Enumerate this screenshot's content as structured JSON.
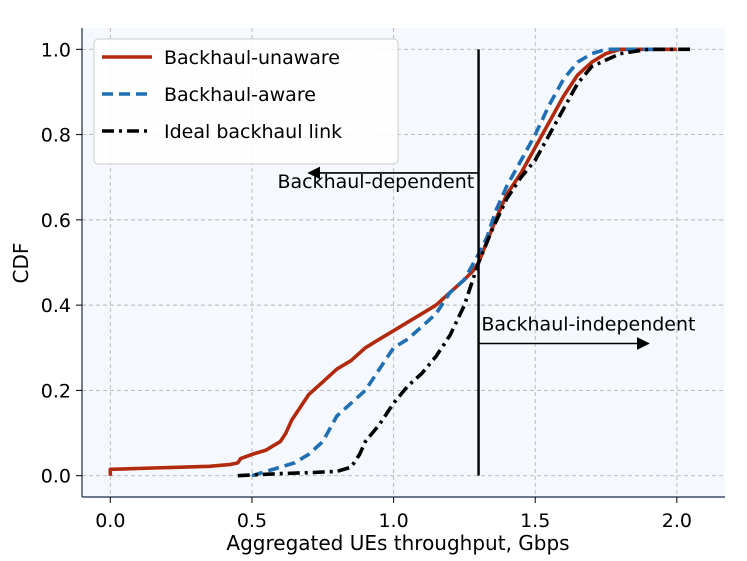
{
  "chart_data": {
    "type": "line",
    "xlabel": "Aggregated UEs throughput, Gbps",
    "ylabel": "CDF",
    "xlim": [
      -0.1,
      2.17
    ],
    "ylim": [
      -0.05,
      1.05
    ],
    "xticks": [
      0.0,
      0.5,
      1.0,
      1.5,
      2.0
    ],
    "xtick_labels": [
      "0.0",
      "0.5",
      "1.0",
      "1.5",
      "2.0"
    ],
    "yticks": [
      0.0,
      0.2,
      0.4,
      0.6,
      0.8,
      1.0
    ],
    "ytick_labels": [
      "0.0",
      "0.2",
      "0.4",
      "0.6",
      "0.8",
      "1.0"
    ],
    "grid": true,
    "legend_position": "top-left",
    "colors": {
      "background": "#f5f9fd",
      "grid": "#b5b5b5",
      "axis": "#1a2a4a"
    },
    "series": [
      {
        "name": "Backhaul-unaware",
        "color": "#b22a0e",
        "style": "solid",
        "points": [
          [
            0.0,
            0.0
          ],
          [
            0.0,
            0.015
          ],
          [
            0.05,
            0.016
          ],
          [
            0.15,
            0.018
          ],
          [
            0.25,
            0.02
          ],
          [
            0.35,
            0.022
          ],
          [
            0.42,
            0.026
          ],
          [
            0.45,
            0.03
          ],
          [
            0.46,
            0.04
          ],
          [
            0.48,
            0.045
          ],
          [
            0.5,
            0.05
          ],
          [
            0.55,
            0.06
          ],
          [
            0.6,
            0.08
          ],
          [
            0.62,
            0.1
          ],
          [
            0.64,
            0.13
          ],
          [
            0.66,
            0.15
          ],
          [
            0.7,
            0.19
          ],
          [
            0.75,
            0.22
          ],
          [
            0.8,
            0.25
          ],
          [
            0.85,
            0.27
          ],
          [
            0.9,
            0.3
          ],
          [
            0.95,
            0.32
          ],
          [
            1.0,
            0.34
          ],
          [
            1.05,
            0.36
          ],
          [
            1.1,
            0.38
          ],
          [
            1.15,
            0.4
          ],
          [
            1.2,
            0.43
          ],
          [
            1.25,
            0.46
          ],
          [
            1.28,
            0.48
          ],
          [
            1.3,
            0.5
          ],
          [
            1.33,
            0.55
          ],
          [
            1.36,
            0.6
          ],
          [
            1.4,
            0.66
          ],
          [
            1.45,
            0.71
          ],
          [
            1.5,
            0.77
          ],
          [
            1.55,
            0.83
          ],
          [
            1.6,
            0.89
          ],
          [
            1.65,
            0.94
          ],
          [
            1.7,
            0.97
          ],
          [
            1.75,
            0.99
          ],
          [
            1.8,
            1.0
          ],
          [
            2.0,
            1.0
          ]
        ]
      },
      {
        "name": "Backhaul-aware",
        "color": "#1f6fb2",
        "style": "dashed",
        "points": [
          [
            0.5,
            0.0
          ],
          [
            0.55,
            0.01
          ],
          [
            0.6,
            0.02
          ],
          [
            0.65,
            0.03
          ],
          [
            0.7,
            0.05
          ],
          [
            0.75,
            0.08
          ],
          [
            0.8,
            0.14
          ],
          [
            0.85,
            0.17
          ],
          [
            0.9,
            0.2
          ],
          [
            0.95,
            0.25
          ],
          [
            1.0,
            0.3
          ],
          [
            1.05,
            0.32
          ],
          [
            1.1,
            0.35
          ],
          [
            1.15,
            0.38
          ],
          [
            1.2,
            0.43
          ],
          [
            1.25,
            0.46
          ],
          [
            1.3,
            0.52
          ],
          [
            1.33,
            0.56
          ],
          [
            1.36,
            0.62
          ],
          [
            1.4,
            0.68
          ],
          [
            1.45,
            0.74
          ],
          [
            1.5,
            0.8
          ],
          [
            1.55,
            0.87
          ],
          [
            1.6,
            0.93
          ],
          [
            1.65,
            0.97
          ],
          [
            1.7,
            0.99
          ],
          [
            1.75,
            1.0
          ],
          [
            1.95,
            1.0
          ]
        ]
      },
      {
        "name": "Ideal backhaul link",
        "color": "#000000",
        "style": "dashdot",
        "points": [
          [
            0.45,
            0.0
          ],
          [
            0.6,
            0.005
          ],
          [
            0.7,
            0.007
          ],
          [
            0.8,
            0.01
          ],
          [
            0.85,
            0.02
          ],
          [
            0.88,
            0.05
          ],
          [
            0.9,
            0.08
          ],
          [
            0.95,
            0.12
          ],
          [
            1.0,
            0.17
          ],
          [
            1.05,
            0.21
          ],
          [
            1.1,
            0.24
          ],
          [
            1.15,
            0.28
          ],
          [
            1.2,
            0.33
          ],
          [
            1.25,
            0.4
          ],
          [
            1.3,
            0.5
          ],
          [
            1.35,
            0.58
          ],
          [
            1.4,
            0.65
          ],
          [
            1.45,
            0.7
          ],
          [
            1.5,
            0.74
          ],
          [
            1.55,
            0.8
          ],
          [
            1.6,
            0.86
          ],
          [
            1.65,
            0.92
          ],
          [
            1.7,
            0.96
          ],
          [
            1.8,
            0.99
          ],
          [
            1.9,
            1.0
          ],
          [
            2.05,
            1.0
          ]
        ]
      }
    ],
    "divider": {
      "x": 1.3,
      "y_range": [
        0.0,
        1.0
      ]
    },
    "annotations": [
      {
        "text": "Backhaul-dependent",
        "arrow": "left",
        "text_anchor": [
          0.59,
          0.675
        ],
        "arrow_from": [
          1.3,
          0.71
        ],
        "arrow_to": [
          0.7,
          0.71
        ]
      },
      {
        "text": "Backhaul-independent",
        "arrow": "right",
        "text_anchor": [
          1.31,
          0.34
        ],
        "arrow_from": [
          1.3,
          0.31
        ],
        "arrow_to": [
          1.9,
          0.31
        ]
      }
    ]
  }
}
